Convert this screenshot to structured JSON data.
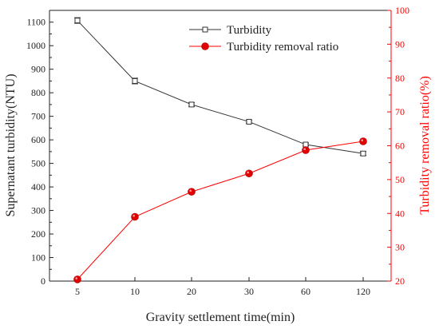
{
  "chart_data": {
    "type": "line",
    "categories": [
      "5",
      "10",
      "20",
      "30",
      "60",
      "120"
    ],
    "xlabel": "Gravity settlement time(min)",
    "ylabel_left": "Supernatant turbidity(NTU)",
    "ylabel_right": "Turbidity removal ratio(%)",
    "ylim_left": [
      0,
      1150
    ],
    "yticks_left": [
      0,
      100,
      200,
      300,
      400,
      500,
      600,
      700,
      800,
      900,
      1000,
      1100
    ],
    "ylim_right": [
      20,
      100
    ],
    "yticks_right": [
      20,
      30,
      40,
      50,
      60,
      70,
      80,
      90,
      100
    ],
    "series": [
      {
        "name": "Turbidity",
        "axis": "left",
        "color": "#333333",
        "marker": "open-square",
        "values": [
          1107,
          850,
          750,
          677,
          580,
          542
        ],
        "error": [
          12,
          12,
          8,
          6,
          6,
          8
        ]
      },
      {
        "name": "Turbidity removal ratio",
        "axis": "right",
        "color": "#ff0000",
        "marker": "filled-circle",
        "values": [
          20.5,
          39,
          46.4,
          51.8,
          58.7,
          61.3
        ]
      }
    ],
    "legend_position": "top-right",
    "grid": false
  }
}
